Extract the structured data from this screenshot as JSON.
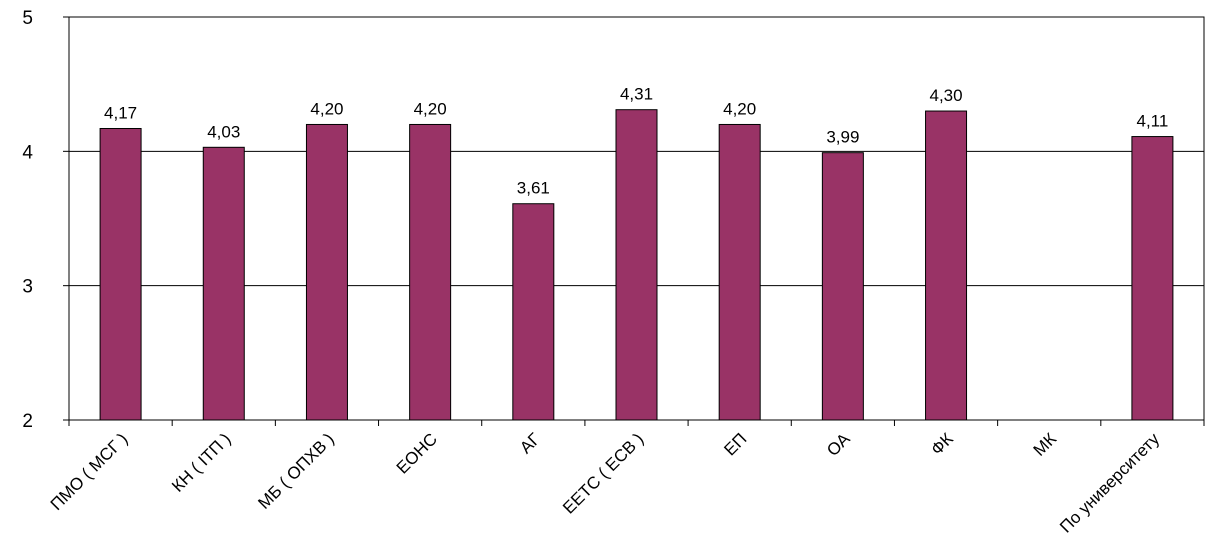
{
  "chart_data": {
    "type": "bar",
    "categories": [
      "ПМО ( МСГ )",
      "КН ( ІТП )",
      "МБ ( ОПХВ )",
      "ЕОНС",
      "АГ",
      "ЕЕТС ( ЕСВ )",
      "ЕП",
      "ОА",
      "ФК",
      "МК",
      "По университету"
    ],
    "values": [
      4.17,
      4.03,
      4.2,
      4.2,
      3.61,
      4.31,
      4.2,
      3.99,
      4.3,
      null,
      4.11
    ],
    "data_labels": [
      "4,17",
      "4,03",
      "4,20",
      "4,20",
      "3,61",
      "4,31",
      "4,20",
      "3,99",
      "4,30",
      "",
      "4,11"
    ],
    "ylim": [
      2,
      5
    ],
    "yticks": [
      2,
      3,
      4,
      5
    ],
    "ytick_labels": [
      "2",
      "3",
      "4",
      "5"
    ],
    "grid": true,
    "legend": "none",
    "title": "",
    "xlabel": "",
    "ylabel": "",
    "colors": {
      "bar_fill": "#993366",
      "bar_stroke": "#000000",
      "gridline": "#000000",
      "axis": "#000000"
    }
  }
}
